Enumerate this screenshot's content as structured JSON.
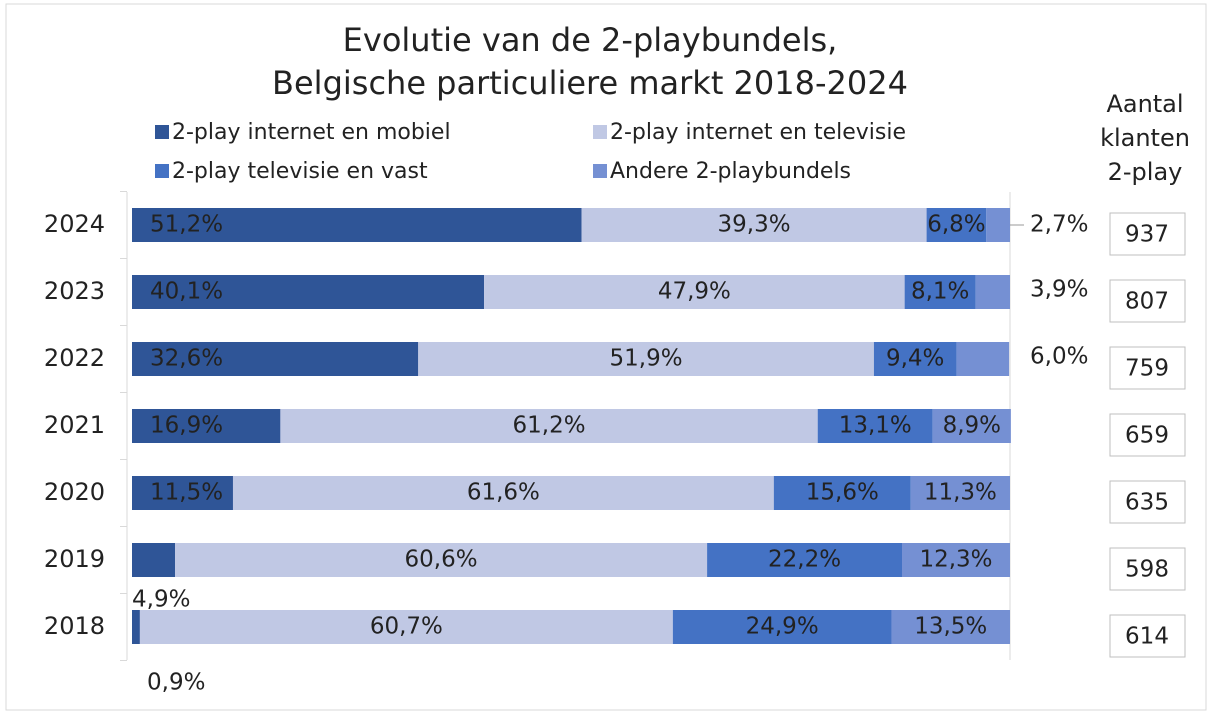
{
  "chart_data": {
    "type": "stacked_barh",
    "title": [
      "Evolutie van de 2-playbundels,",
      "Belgische particuliere markt 2018-2024"
    ],
    "categories": [
      "2024",
      "2023",
      "2022",
      "2021",
      "2020",
      "2019",
      "2018"
    ],
    "series": [
      {
        "name": "2-play internet en mobiel",
        "color": "#2f5597",
        "values": [
          51.2,
          40.1,
          32.6,
          16.9,
          11.5,
          4.9,
          0.9
        ],
        "value_labels": [
          "51,2%",
          "40,1%",
          "32,6%",
          "16,9%",
          "11,5%",
          "4,9%",
          "0,9%"
        ]
      },
      {
        "name": "2-play internet en televisie",
        "color": "#c0c8e4",
        "values": [
          39.3,
          47.9,
          51.9,
          61.2,
          61.6,
          60.6,
          60.7
        ],
        "value_labels": [
          "39,3%",
          "47,9%",
          "51,9%",
          "61,2%",
          "61,6%",
          "60,6%",
          "60,7%"
        ]
      },
      {
        "name": "2-play televisie en vast",
        "color": "#4472c4",
        "values": [
          6.8,
          8.1,
          9.4,
          13.1,
          15.6,
          22.2,
          24.9
        ],
        "value_labels": [
          "6,8%",
          "8,1%",
          "9,4%",
          "13,1%",
          "15,6%",
          "22,2%",
          "24,9%"
        ]
      },
      {
        "name": "Andere 2-playbundels",
        "color": "#7590d3",
        "values": [
          2.7,
          3.9,
          6.0,
          8.9,
          11.3,
          12.3,
          13.5
        ],
        "value_labels": [
          "2,7%",
          "3,9%",
          "6,0%",
          "8,9%",
          "11,3%",
          "12,3%",
          "13,5%"
        ]
      }
    ],
    "xlim": [
      0,
      100
    ],
    "side_title": [
      "Aantal",
      "klanten",
      "2-play"
    ],
    "customers": [
      937,
      807,
      759,
      659,
      635,
      598,
      614
    ]
  }
}
